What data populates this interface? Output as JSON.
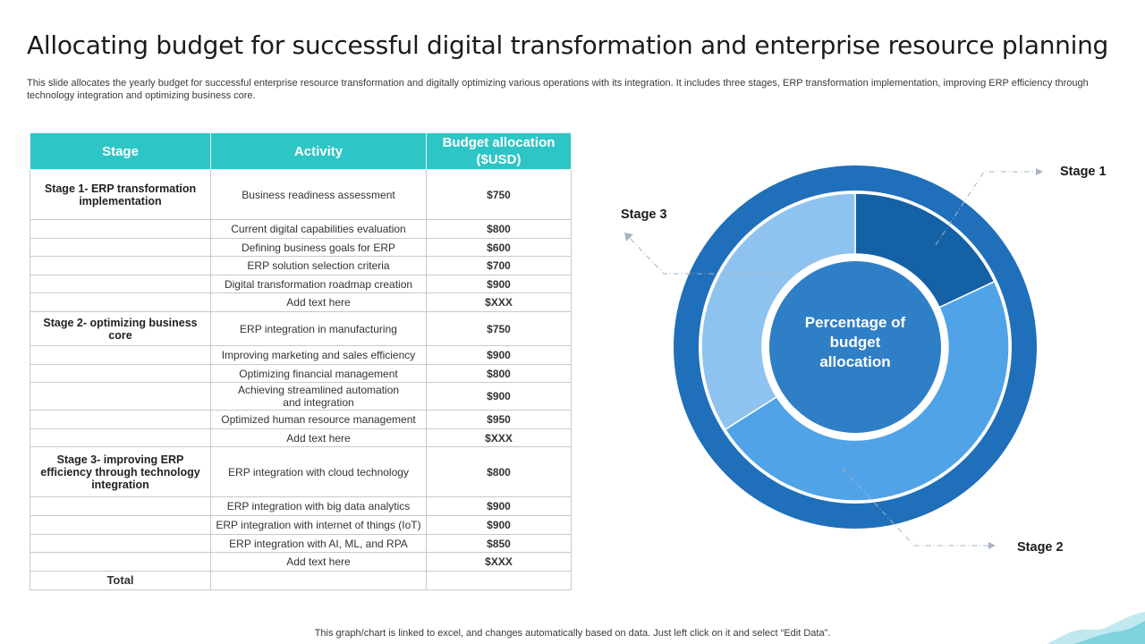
{
  "header": {
    "title": "Allocating budget for successful digital transformation and enterprise resource planning",
    "subtitle": "This slide allocates the yearly budget for successful enterprise resource transformation and digitally optimizing various operations with its integration. It includes three stages, ERP transformation implementation, improving ERP efficiency through technology integration and optimizing business core."
  },
  "table": {
    "headers": {
      "stage": "Stage",
      "activity": "Activity",
      "budget": "Budget allocation ($USD)"
    },
    "rows": [
      {
        "stage": "Stage 1- ERP transformation implementation",
        "activity": "Business readiness assessment",
        "amount": "$750"
      },
      {
        "stage": "",
        "activity": "Current digital capabilities evaluation",
        "amount": "$800"
      },
      {
        "stage": "",
        "activity": "Defining business goals for ERP",
        "amount": "$600"
      },
      {
        "stage": "",
        "activity": "ERP solution selection criteria",
        "amount": "$700"
      },
      {
        "stage": "",
        "activity": "Digital transformation roadmap creation",
        "amount": "$900"
      },
      {
        "stage": "",
        "activity": "Add text here",
        "amount": "$XXX"
      },
      {
        "stage": "Stage 2- optimizing business core",
        "activity": "ERP integration in manufacturing",
        "amount": "$750"
      },
      {
        "stage": "",
        "activity": "Improving marketing and sales efficiency",
        "amount": "$900"
      },
      {
        "stage": "",
        "activity": "Optimizing financial management",
        "amount": "$800"
      },
      {
        "stage": "",
        "activity": "Achieving streamlined automation and integration",
        "amount": "$900"
      },
      {
        "stage": "",
        "activity": "Optimized human resource management",
        "amount": "$950"
      },
      {
        "stage": "",
        "activity": "Add text here",
        "amount": "$XXX"
      },
      {
        "stage": "Stage 3- improving ERP efficiency through technology integration",
        "activity": "ERP integration with cloud technology",
        "amount": "$800"
      },
      {
        "stage": "",
        "activity": "ERP integration with big data analytics",
        "amount": "$900"
      },
      {
        "stage": "",
        "activity": "ERP integration with internet of things (IoT)",
        "amount": "$900"
      },
      {
        "stage": "",
        "activity": "ERP integration with AI,  ML, and RPA",
        "amount": "$850"
      },
      {
        "stage": "",
        "activity": "Add text here",
        "amount": "$XXX"
      }
    ],
    "total_label": "Total"
  },
  "chart_data": {
    "type": "pie",
    "center_label": "Percentage of budget allocation",
    "slices": [
      {
        "name": "Stage 1",
        "value": 18,
        "color": "#1561a6"
      },
      {
        "name": "Stage 2",
        "value": 48,
        "color": "#4fa3e6"
      },
      {
        "name": "Stage 3",
        "value": 34,
        "color": "#8fc3ef"
      }
    ],
    "outer_ring_color": "#1f6fba",
    "center_color": "#2f7fc7"
  },
  "footer": {
    "note": "This graph/chart is linked to excel,  and changes automatically based on data. Just left click on it and select “Edit Data”."
  }
}
